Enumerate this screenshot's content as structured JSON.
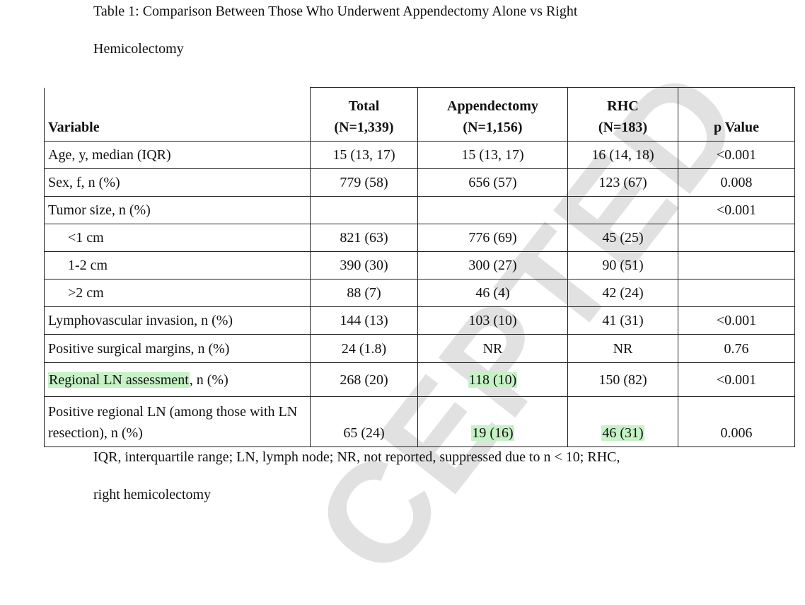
{
  "title": [
    "Table 1: Comparison Between Those Who Underwent Appendectomy Alone vs Right",
    "Hemicolectomy"
  ],
  "table": {
    "header": [
      [
        "Variable"
      ],
      [
        "Total",
        "(N=1,339)"
      ],
      [
        "Appendectomy",
        "(N=1,156)"
      ],
      [
        "RHC",
        "(N=183)"
      ],
      [
        "p Value"
      ]
    ],
    "rows": [
      [
        "Age, y, median (IQR)",
        "15 (13, 17)",
        "15 (13, 17)",
        "16 (14, 18)",
        "<0.001"
      ],
      [
        "Sex, f, n (%)",
        "779 (58)",
        "656 (57)",
        "123 (67)",
        "0.008"
      ],
      [
        "Tumor size, n (%)",
        "",
        "",
        "",
        "<0.001"
      ],
      [
        "<1 cm",
        "821 (63)",
        "776 (69)",
        "45 (25)",
        ""
      ],
      [
        "1-2 cm",
        "390 (30)",
        "300 (27)",
        "90 (51)",
        ""
      ],
      [
        ">2 cm",
        "88 (7)",
        "46 (4)",
        "42 (24)",
        ""
      ],
      [
        "Lymphovascular invasion, n (%)",
        "144 (13)",
        "103 (10)",
        "41 (31)",
        "<0.001"
      ],
      [
        "Positive surgical margins, n (%)",
        "24 (1.8)",
        "NR",
        "NR",
        "0.76"
      ],
      [
        [
          {
            "text": "Regional LN assessment",
            "highlight": "#c6f2c6"
          },
          {
            "text": ", n (%)"
          }
        ],
        "268 (20)",
        {
          "text": "118 (10)",
          "highlight": "#c6f2c6"
        },
        "150 (82)",
        "<0.001"
      ],
      [
        "Positive regional LN (among those with LN resection), n (%)",
        "65 (24)",
        {
          "text": "19 (16)",
          "highlight": "#c6f2c6"
        },
        {
          "text": "46 (31)",
          "highlight": "#c6f2c6"
        },
        "0.006"
      ]
    ]
  },
  "footnote": [
    "IQR, interquartile range; LN, lymph node; NR, not reported, suppressed due to n < 10; RHC,",
    "right hemicolectomy"
  ],
  "watermark": "CEPTED"
}
